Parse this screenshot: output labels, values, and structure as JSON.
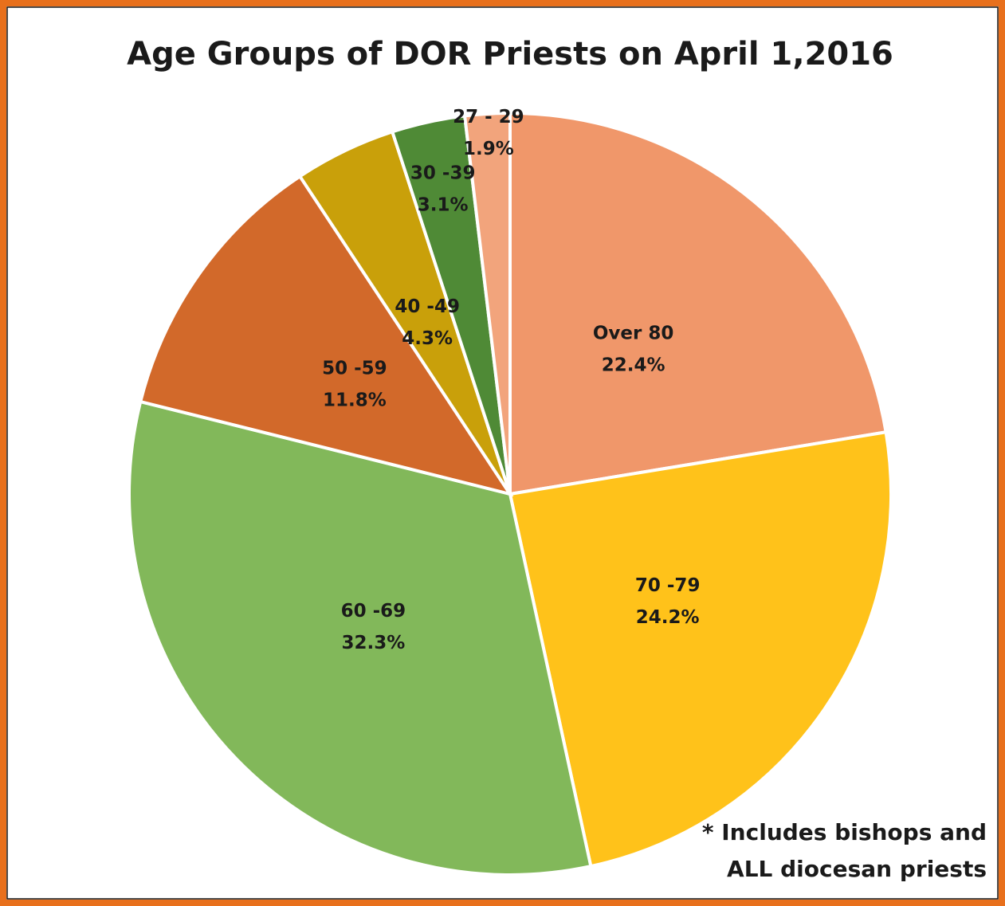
{
  "chart_data": {
    "type": "pie",
    "title": "Age Groups of DOR Priests on April 1,2016",
    "categories": [
      "Over 80",
      "70 -79",
      "60 -69",
      "50 -59",
      "40 -49",
      "30 -39",
      "27 - 29"
    ],
    "values": [
      22.4,
      24.2,
      32.3,
      11.8,
      4.3,
      3.1,
      1.9
    ],
    "value_labels": [
      "22.4%",
      "24.2%",
      "32.3%",
      "11.8%",
      "4.3%",
      "3.1%",
      "1.9%"
    ],
    "colors": [
      "#f0976a",
      "#ffc21a",
      "#82b85a",
      "#d2692a",
      "#c9a00a",
      "#4f8a36",
      "#f2a47c"
    ],
    "note": [
      "* Includes bishops and",
      "ALL diocesan priests"
    ]
  }
}
